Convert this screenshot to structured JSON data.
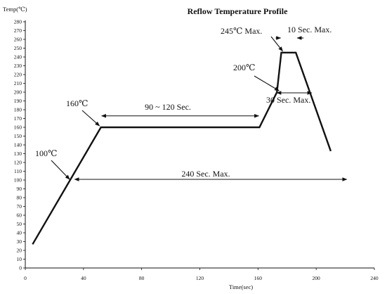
{
  "chart_data": {
    "type": "line",
    "title": "Reflow Temperature Profile",
    "xlabel": "Time(sec)",
    "ylabel": "Temp(℃)",
    "xlim": [
      0,
      240
    ],
    "ylim": [
      0,
      280
    ],
    "x_ticks": [
      "0",
      "40",
      "80",
      "120",
      "160",
      "200",
      "240"
    ],
    "y_ticks": [
      "0",
      "10",
      "20",
      "30",
      "40",
      "50",
      "60",
      "70",
      "80",
      "90",
      "100",
      "110",
      "120",
      "130",
      "140",
      "150",
      "160",
      "170",
      "180",
      "190",
      "200",
      "210",
      "220",
      "230",
      "240",
      "250",
      "260",
      "270",
      "280"
    ],
    "grid": false,
    "legend": "none",
    "series": [
      {
        "x": [
          5,
          52,
          161,
          173,
          176,
          186,
          210
        ],
        "y": [
          27,
          160,
          160,
          200,
          245,
          245,
          133
        ]
      }
    ],
    "annotations": [
      {
        "text": "100℃",
        "x": 30,
        "y": 100
      },
      {
        "text": "160℃",
        "x": 52,
        "y": 160
      },
      {
        "text": "200℃",
        "x": 173,
        "y": 200
      },
      {
        "text": "245℃ Max.",
        "x": 176,
        "y": 245
      },
      {
        "text": "10 Sec. Max.",
        "x_from": 176,
        "x_to": 186,
        "y": 265
      },
      {
        "text": "90 ~ 120 Sec.",
        "x_from": 52,
        "x_to": 161,
        "y": 173
      },
      {
        "text": "30 Sec. Max.",
        "x_from": 171,
        "x_to": 196,
        "y": 200
      },
      {
        "text": "240 Sec. Max.",
        "x_from": 32,
        "x_to": 222,
        "y": 100
      }
    ],
    "colors": {
      "line": "#111111",
      "text": "#111111"
    }
  }
}
